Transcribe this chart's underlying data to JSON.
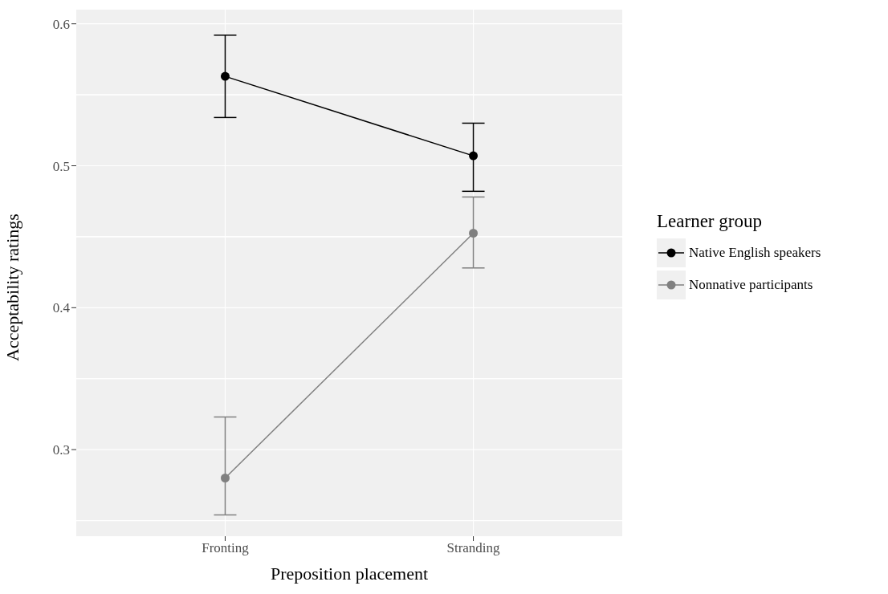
{
  "chart_data": {
    "type": "line",
    "xlabel": "Preposition placement",
    "ylabel": "Acceptability ratings",
    "legend_title": "Learner group",
    "categories": [
      "Fronting",
      "Stranding"
    ],
    "ylim": [
      0.239,
      0.61
    ],
    "yticks": [
      0.3,
      0.4,
      0.5,
      0.6
    ],
    "grid": true,
    "legend": "right",
    "marker": "circle",
    "line_style": "solid",
    "series": [
      {
        "name": "Native English speakers",
        "color": "#000000",
        "values": [
          0.563,
          0.507
        ],
        "errors": [
          [
            0.534,
            0.592
          ],
          [
            0.482,
            0.53
          ]
        ]
      },
      {
        "name": "Nonnative participants",
        "color": "#808080",
        "values": [
          0.28,
          0.4525
        ],
        "errors": [
          [
            0.254,
            0.323
          ],
          [
            0.428,
            0.478
          ]
        ]
      }
    ]
  }
}
